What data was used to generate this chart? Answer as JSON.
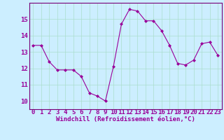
{
  "x": [
    0,
    1,
    2,
    3,
    4,
    5,
    6,
    7,
    8,
    9,
    10,
    11,
    12,
    13,
    14,
    15,
    16,
    17,
    18,
    19,
    20,
    21,
    22,
    23
  ],
  "y": [
    13.4,
    13.4,
    12.4,
    11.9,
    11.9,
    11.9,
    11.5,
    10.5,
    10.3,
    10.0,
    12.1,
    14.7,
    15.6,
    15.5,
    14.9,
    14.9,
    14.3,
    13.4,
    12.3,
    12.2,
    12.5,
    13.5,
    13.6,
    12.8
  ],
  "line_color": "#990099",
  "marker": "D",
  "markersize": 2.0,
  "linewidth": 0.8,
  "xlabel": "Windchill (Refroidissement éolien,°C)",
  "xlabel_fontsize": 6.5,
  "ylim": [
    9.5,
    16.0
  ],
  "xlim": [
    -0.5,
    23.5
  ],
  "yticks": [
    10,
    11,
    12,
    13,
    14,
    15
  ],
  "xticks": [
    0,
    1,
    2,
    3,
    4,
    5,
    6,
    7,
    8,
    9,
    10,
    11,
    12,
    13,
    14,
    15,
    16,
    17,
    18,
    19,
    20,
    21,
    22,
    23
  ],
  "grid_color": "#aaddcc",
  "bg_color": "#cceeff",
  "tick_fontsize": 6.5,
  "spine_color": "#770077"
}
